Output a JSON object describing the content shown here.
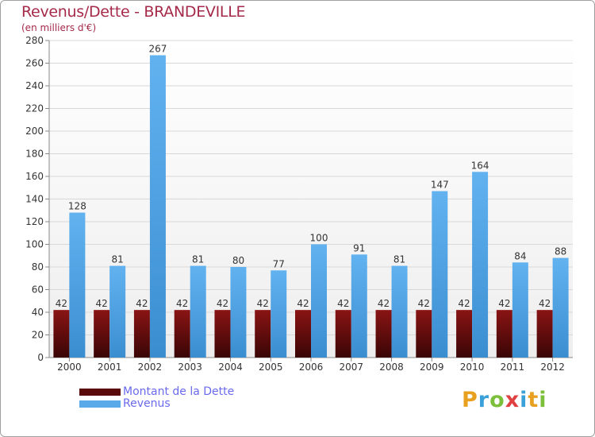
{
  "title": "Revenus/Dette - BRANDEVILLE",
  "subtitle": "(en milliers d'€)",
  "chart_data": {
    "type": "bar",
    "categories": [
      "2000",
      "2001",
      "2002",
      "2003",
      "2004",
      "2005",
      "2006",
      "2007",
      "2008",
      "2009",
      "2010",
      "2011",
      "2012"
    ],
    "series": [
      {
        "name": "Montant de la Dette",
        "values": [
          42,
          42,
          42,
          42,
          42,
          42,
          42,
          42,
          42,
          42,
          42,
          42,
          42
        ],
        "color": "#7a1010"
      },
      {
        "name": "Revenus",
        "values": [
          128,
          81,
          267,
          81,
          80,
          77,
          100,
          91,
          81,
          147,
          164,
          84,
          88
        ],
        "color": "#5aaaea"
      }
    ],
    "ylim": [
      0,
      280
    ],
    "yticks": [
      0,
      20,
      40,
      60,
      80,
      100,
      120,
      140,
      160,
      180,
      200,
      220,
      240,
      260,
      280
    ],
    "grid": true,
    "legend": "bottom-left"
  },
  "legend": {
    "debt_label": "Montant de la Dette",
    "revenue_label": "Revenus"
  },
  "logo": {
    "text": "Proxiti",
    "letters": [
      {
        "ch": "P",
        "color": "#e8a020"
      },
      {
        "ch": "r",
        "color": "#3aa0d8"
      },
      {
        "ch": "o",
        "color": "#7bbf3a"
      },
      {
        "ch": "x",
        "color": "#e04040"
      },
      {
        "ch": "i",
        "color": "#3aa0d8"
      },
      {
        "ch": "t",
        "color": "#e8a020"
      },
      {
        "ch": "i",
        "color": "#7bbf3a"
      }
    ]
  }
}
